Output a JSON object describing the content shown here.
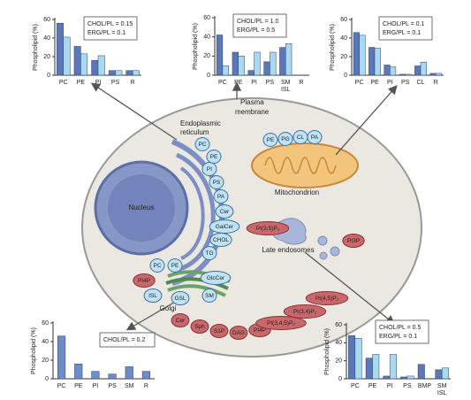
{
  "chart_data": [
    {
      "type": "bar",
      "ylabel": "Phospholipid (%)",
      "categories": [
        "PC",
        "PE",
        "PI",
        "PS",
        "R"
      ],
      "category_sublabels": [
        null,
        null,
        null,
        null,
        null
      ],
      "series": [
        {
          "color": "#5b77b6",
          "values": [
            56,
            31,
            16,
            5,
            5
          ]
        },
        {
          "color": "#a9d9ef",
          "values": [
            41,
            23,
            21,
            5,
            5
          ]
        }
      ],
      "ylim": [
        0,
        60
      ],
      "yticks": [
        0,
        20,
        40,
        60
      ],
      "annotations": [
        "CHOL/PL = 0.15",
        "ERG/PL = 0.1"
      ]
    },
    {
      "type": "bar",
      "ylabel": "Phospholipid (%)",
      "categories": [
        "PC",
        "PE",
        "PI",
        "PS",
        "SM",
        "R"
      ],
      "category_sublabels": [
        null,
        null,
        null,
        null,
        "ISL",
        null
      ],
      "series": [
        {
          "color": "#5b77b6",
          "values": [
            42,
            24,
            5,
            14,
            29,
            0
          ]
        },
        {
          "color": "#a9d9ef",
          "values": [
            10,
            20,
            24,
            24,
            33,
            0
          ]
        }
      ],
      "ylim": [
        0,
        60
      ],
      "yticks": [
        0,
        20,
        40,
        60
      ],
      "annotations": [
        "CHOL/PL = 1.0",
        "ERG/PL = 0.5"
      ]
    },
    {
      "type": "bar",
      "ylabel": "Phospholipid (%)",
      "categories": [
        "PC",
        "PE",
        "PI",
        "PS",
        "CL",
        "R"
      ],
      "category_sublabels": [
        null,
        null,
        null,
        null,
        null,
        null
      ],
      "series": [
        {
          "color": "#5b77b6",
          "values": [
            46,
            30,
            11,
            1,
            10,
            2
          ]
        },
        {
          "color": "#a9d9ef",
          "values": [
            43,
            29,
            9,
            1,
            14,
            2
          ]
        }
      ],
      "ylim": [
        0,
        60
      ],
      "yticks": [
        0,
        20,
        40,
        60
      ],
      "annotations": [
        "CHOL/PL = 0.1",
        "ERG/PL = 0.1"
      ]
    },
    {
      "type": "bar",
      "ylabel": "Phospholipid (%)",
      "categories": [
        "PC",
        "PE",
        "PI",
        "PS",
        "SM",
        "R"
      ],
      "category_sublabels": [
        null,
        null,
        null,
        null,
        null,
        null
      ],
      "series": [
        {
          "color": "#6f8cc6",
          "values": [
            46,
            16,
            8,
            5,
            13,
            8
          ]
        }
      ],
      "ylim": [
        0,
        60
      ],
      "yticks": [
        0,
        20,
        40,
        60
      ],
      "annotations": [
        "CHOL/PL = 0.2"
      ]
    },
    {
      "type": "bar",
      "ylabel": "Phospholipid (%)",
      "categories": [
        "PC",
        "PE",
        "PI",
        "PS",
        "BMP",
        "SM"
      ],
      "category_sublabels": [
        null,
        null,
        null,
        null,
        null,
        "ISL"
      ],
      "series": [
        {
          "color": "#5b77b6",
          "values": [
            48,
            23,
            3,
            2,
            16,
            10
          ]
        },
        {
          "color": "#a9d9ef",
          "values": [
            45,
            27,
            27,
            3,
            0,
            12
          ]
        }
      ],
      "ylim": [
        0,
        60
      ],
      "yticks": [
        0,
        20,
        40,
        60
      ],
      "annotations": [
        "CHOL/PL = 0.5",
        "ERG/PL = 0.1"
      ]
    }
  ],
  "diagram": {
    "plasma_membrane": [
      "Plasma",
      "membrane"
    ],
    "er": [
      "Endoplasmic",
      "reticulum"
    ],
    "nucleus": "Nucleus",
    "mitochondrion": "Mitochondrion",
    "late_endosomes": "Late endosomes",
    "golgi": "Golgi",
    "er_lipids": [
      "PC",
      "PE",
      "PI",
      "PS",
      "PA",
      "Cer",
      "GalCer",
      "CHOL",
      "TG"
    ],
    "mito_lipids": [
      "PE",
      "PG",
      "CL",
      "PA"
    ],
    "golgi_lipids": [
      "PC",
      "PE",
      "PI4P",
      "GlcCer",
      "ISL",
      "GSL",
      "SM"
    ],
    "endosome_lipids": [
      "PI(3,5)P₂",
      "PI3P"
    ],
    "pm_lipids": [
      "Cer",
      "Sph",
      "S1P",
      "DAG",
      "PI4P",
      "PI(3,4,5)P₃",
      "PI(3,4)P₂",
      "PI(4,5)P₂"
    ]
  }
}
